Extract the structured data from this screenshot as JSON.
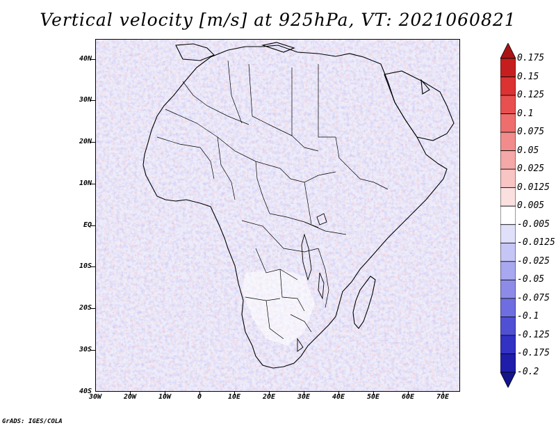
{
  "title": "Vertical velocity [m/s] at 925hPa, VT: 2021060821",
  "credit": "GrADS: IGES/COLA",
  "map": {
    "projection": "lat-lon",
    "lon_range": [
      -30,
      75
    ],
    "lat_range": [
      -40,
      45
    ],
    "lat_ticks": [
      "40N",
      "30N",
      "20N",
      "10N",
      "EQ",
      "10S",
      "20S",
      "30S",
      "40S"
    ],
    "lon_ticks": [
      "30W",
      "20W",
      "10W",
      "0",
      "10E",
      "20E",
      "30E",
      "40E",
      "50E",
      "60E",
      "70E"
    ],
    "field": "vertical velocity",
    "level": "925hPa",
    "valid_time": "2021060821"
  },
  "colorbar": {
    "labels": [
      "0.175",
      "0.15",
      "0.125",
      "0.1",
      "0.075",
      "0.05",
      "0.025",
      "0.0125",
      "0.005",
      "-0.005",
      "-0.0125",
      "-0.025",
      "-0.05",
      "-0.075",
      "-0.1",
      "-0.125",
      "-0.175",
      "-0.2"
    ],
    "colors": [
      "#aa1414",
      "#c61e1e",
      "#dc3232",
      "#e85050",
      "#ee6e6e",
      "#f28c8c",
      "#f5a8a8",
      "#f8c4c4",
      "#fbe0e0",
      "#ffffff",
      "#e0e0fb",
      "#c6c6f6",
      "#a8a8f0",
      "#8c8ce8",
      "#6e6ee0",
      "#5050d4",
      "#3232c4",
      "#1e1eaa",
      "#14148c"
    ]
  }
}
